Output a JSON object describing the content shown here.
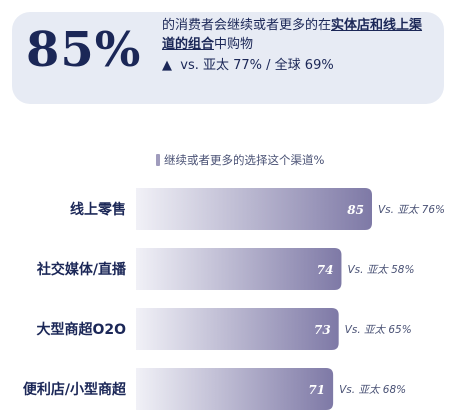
{
  "headline": {
    "value": "85%",
    "text_pre": "的消费者会继续或者更多的在",
    "text_hl": "实体店和线上渠道的组合",
    "text_post": "中购物",
    "trend_icon": "triangle-up-icon",
    "comparison": "vs. 亚太 77% / 全球 69%"
  },
  "chart_data": {
    "type": "bar",
    "orientation": "horizontal",
    "legend": "继续或者更多的选择这个渠道%",
    "categories": [
      "线上零售",
      "社交媒体/直播",
      "大型商超O2O",
      "便利店/小型商超"
    ],
    "values": [
      85,
      74,
      73,
      71
    ],
    "value_labels": [
      "85",
      "74",
      "73",
      "71"
    ],
    "comparison_labels": [
      "Vs. 亚太 76%",
      "Vs. 亚太 58%",
      "Vs. 亚太 65%",
      "Vs. 亚太 68%"
    ],
    "xlim": [
      0,
      85
    ]
  },
  "colors": {
    "bar_start": "#f1f1f7",
    "bar_end": "#7e79a6",
    "text": "#1b2757",
    "callout_bg": "#e7ebf4"
  }
}
